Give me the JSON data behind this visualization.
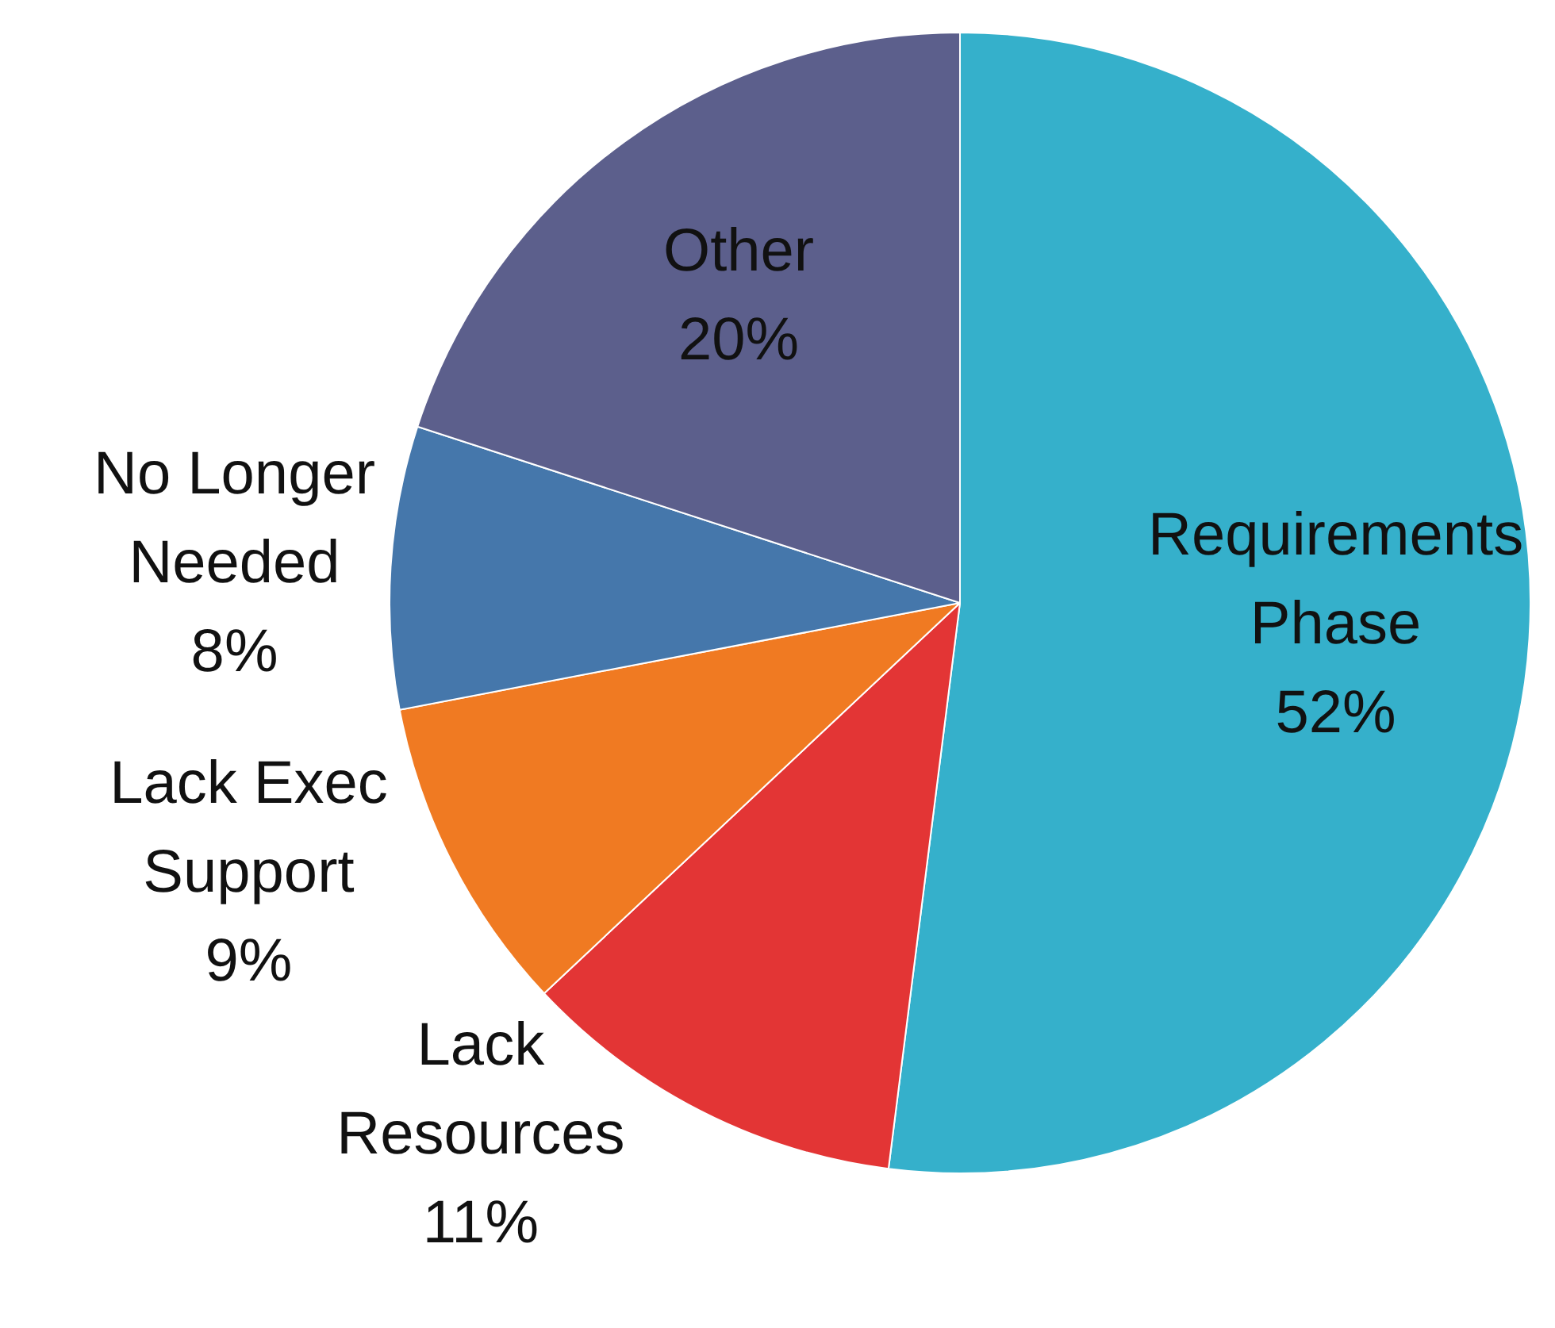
{
  "chart_data": {
    "type": "pie",
    "categories": [
      "Requirements Phase",
      "Lack Resources",
      "Lack Exec Support",
      "No Longer Needed",
      "Other"
    ],
    "values": [
      52,
      11,
      9,
      8,
      20
    ],
    "value_labels": [
      "52%",
      "11%",
      "9%",
      "8%",
      "20%"
    ],
    "colors": [
      "#35b0cb",
      "#e33535",
      "#f07a22",
      "#4577ab",
      "#5c5f8c"
    ],
    "legend": false
  }
}
